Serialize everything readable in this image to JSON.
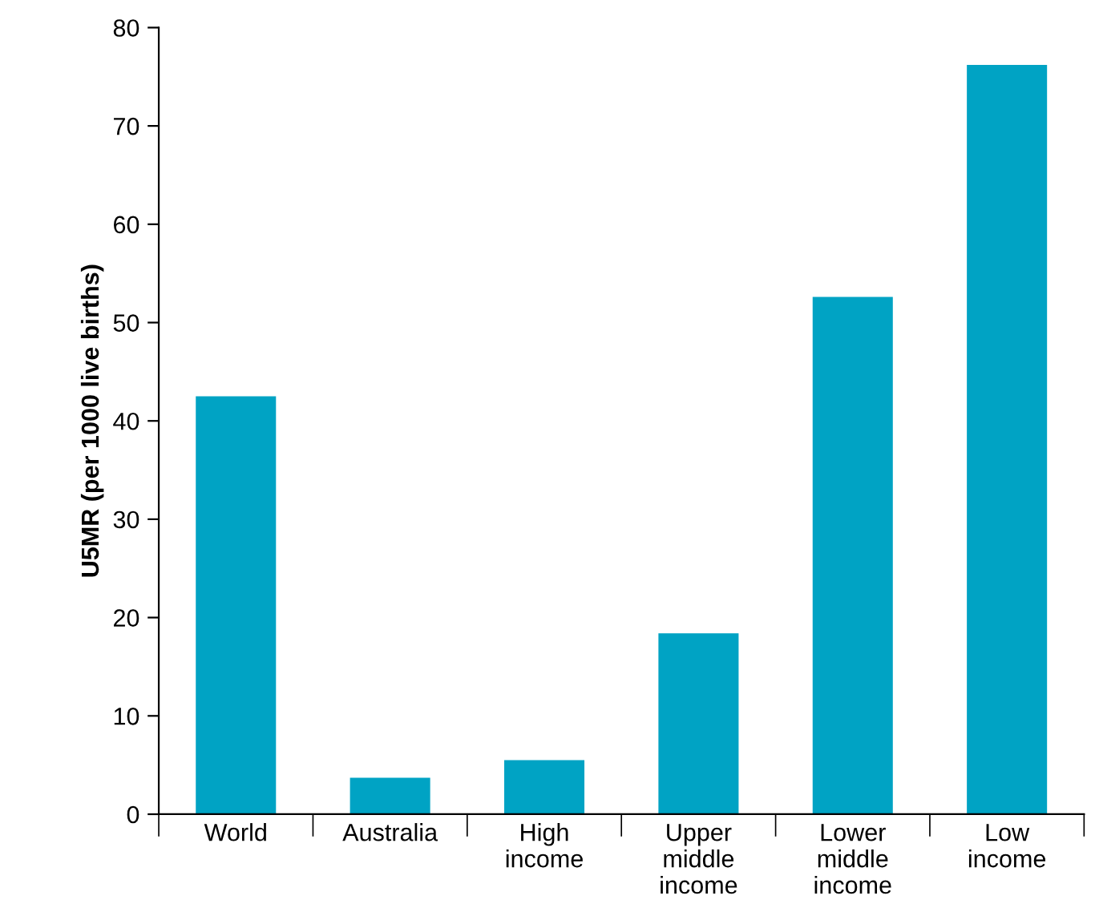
{
  "chart_data": {
    "type": "bar",
    "ylabel": "U5MR (per 1000 live births)",
    "categories": [
      "World",
      "Australia",
      "High\nincome",
      "Upper\nmiddle\nincome",
      "Lower\nmiddle\nincome",
      "Low\nincome"
    ],
    "values": [
      42.5,
      3.7,
      5.5,
      18.4,
      52.6,
      76.2
    ],
    "color": "#00a3c4",
    "ylim": [
      0,
      80
    ],
    "yticks": [
      0,
      10,
      20,
      30,
      40,
      50,
      60,
      70,
      80
    ],
    "grid": false
  }
}
